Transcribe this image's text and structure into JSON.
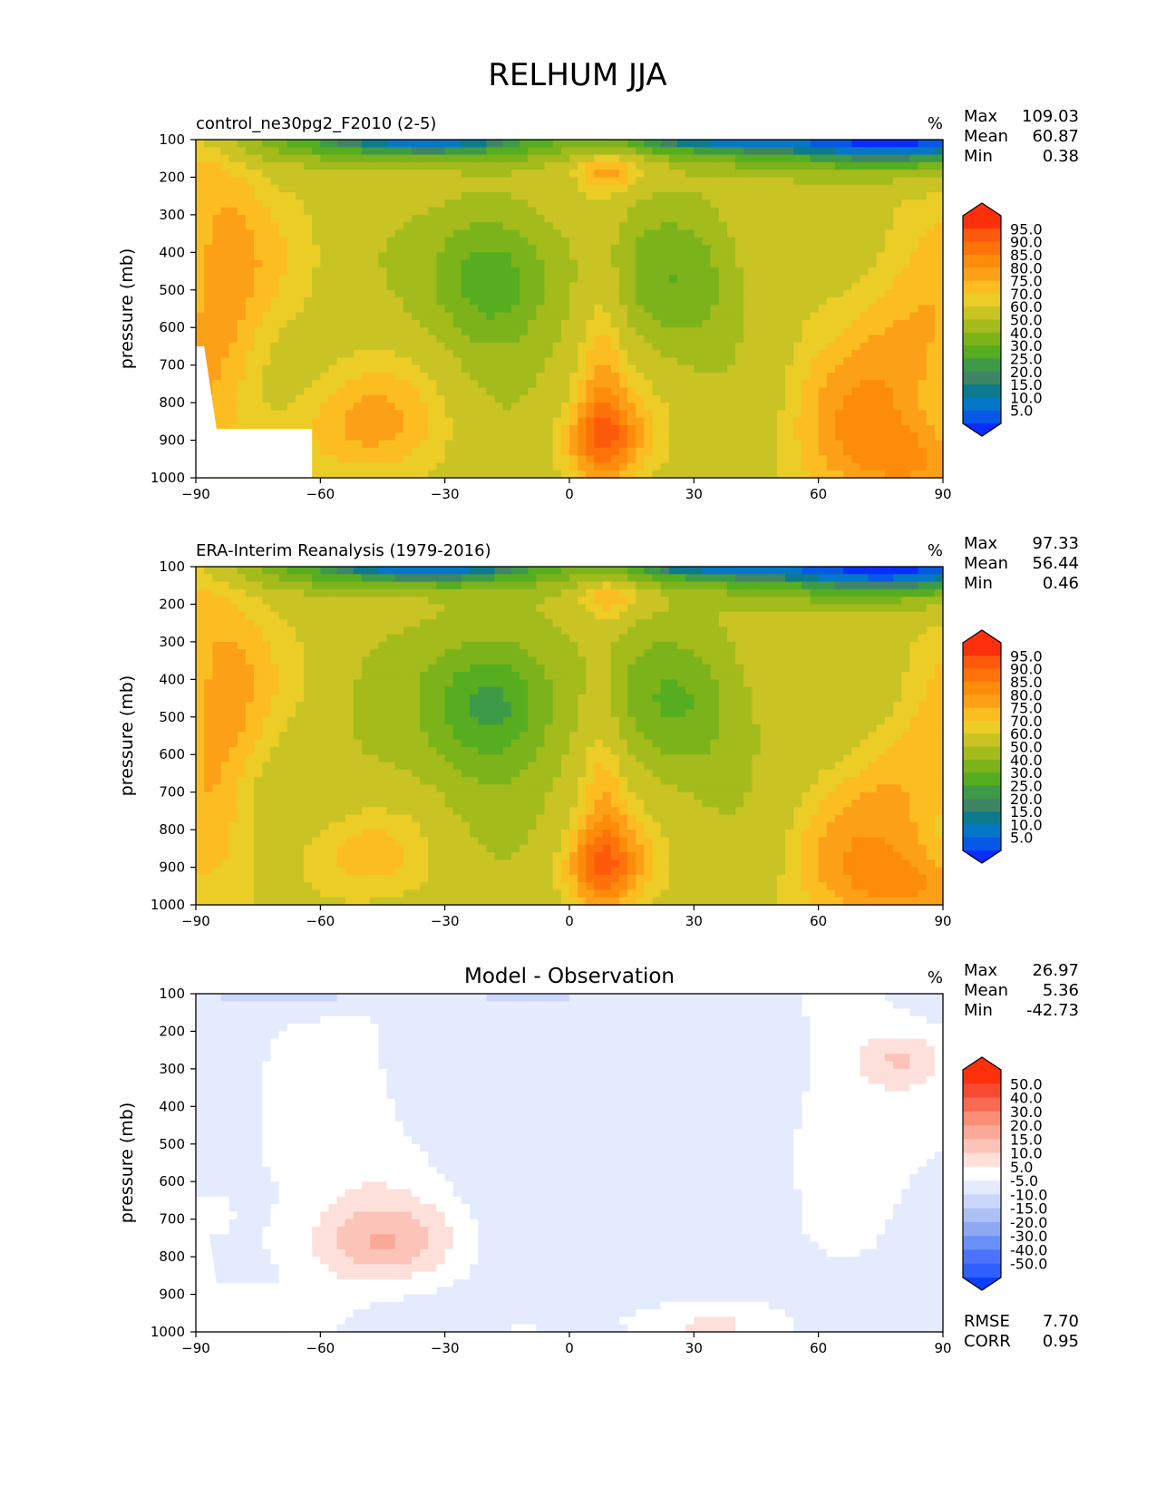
{
  "figure_title": "RELHUM JJA",
  "colors": {
    "abs": [
      "#0a2dff",
      "#0658e6",
      "#0577c8",
      "#0b7b8d",
      "#3e8565",
      "#3d9a47",
      "#55ad1f",
      "#7cb31a",
      "#a3bb1b",
      "#c9c324",
      "#ebcd26",
      "#fcbd21",
      "#fca017",
      "#fd8c0b",
      "#fd730a",
      "#fe5a0c",
      "#fe300c"
    ],
    "diff": [
      "#0a3fff",
      "#2f5fff",
      "#4b74fb",
      "#6a8ff6",
      "#8ea8f4",
      "#adc0f5",
      "#cbd7fa",
      "#e3ebfd",
      "#ffffff",
      "#fde0da",
      "#fcc3b8",
      "#fca897",
      "#fc8d76",
      "#f96a53",
      "#f64a30",
      "#fe300c"
    ]
  },
  "chart_data": [
    {
      "type": "heatmap",
      "title": "control_ne30pg2_F2010 (2-5)",
      "units": "%",
      "ylabel": "pressure (mb)",
      "x_ticks": [
        "−90",
        "−60",
        "−30",
        "0",
        "30",
        "60",
        "90"
      ],
      "y_ticks": [
        "100",
        "200",
        "300",
        "400",
        "500",
        "600",
        "700",
        "800",
        "900",
        "1000"
      ],
      "xlim": [
        -90,
        90
      ],
      "ylim": [
        1000,
        100
      ],
      "stats": [
        {
          "label": "Max",
          "value": "109.03"
        },
        {
          "label": "Mean",
          "value": "60.87"
        },
        {
          "label": "Min",
          "value": "0.38"
        }
      ],
      "colorbar_labels": [
        "95.0",
        "90.0",
        "85.0",
        "80.0",
        "75.0",
        "70.0",
        "60.0",
        "50.0",
        "40.0",
        "30.0",
        "25.0",
        "20.0",
        "15.0",
        "10.0",
        "5.0"
      ]
    },
    {
      "type": "heatmap",
      "title": "ERA-Interim Reanalysis (1979-2016)",
      "units": "%",
      "ylabel": "pressure (mb)",
      "x_ticks": [
        "−90",
        "−60",
        "−30",
        "0",
        "30",
        "60",
        "90"
      ],
      "y_ticks": [
        "100",
        "200",
        "300",
        "400",
        "500",
        "600",
        "700",
        "800",
        "900",
        "1000"
      ],
      "xlim": [
        -90,
        90
      ],
      "ylim": [
        1000,
        100
      ],
      "stats": [
        {
          "label": "Max",
          "value": "97.33"
        },
        {
          "label": "Mean",
          "value": "56.44"
        },
        {
          "label": "Min",
          "value": "0.46"
        }
      ],
      "colorbar_labels": [
        "95.0",
        "90.0",
        "85.0",
        "80.0",
        "75.0",
        "70.0",
        "60.0",
        "50.0",
        "40.0",
        "30.0",
        "25.0",
        "20.0",
        "15.0",
        "10.0",
        "5.0"
      ]
    },
    {
      "type": "heatmap",
      "title": "Model - Observation",
      "units": "%",
      "ylabel": "pressure (mb)",
      "x_ticks": [
        "−90",
        "−60",
        "−30",
        "0",
        "30",
        "60",
        "90"
      ],
      "y_ticks": [
        "100",
        "200",
        "300",
        "400",
        "500",
        "600",
        "700",
        "800",
        "900",
        "1000"
      ],
      "xlim": [
        -90,
        90
      ],
      "ylim": [
        1000,
        100
      ],
      "stats": [
        {
          "label": "Max",
          "value": "26.97"
        },
        {
          "label": "Mean",
          "value": "5.36"
        },
        {
          "label": "Min",
          "value": "-42.73"
        }
      ],
      "colorbar_labels": [
        "50.0",
        "40.0",
        "30.0",
        "20.0",
        "15.0",
        "10.0",
        "5.0",
        "-5.0",
        "-10.0",
        "-15.0",
        "-20.0",
        "-30.0",
        "-40.0",
        "-50.0"
      ],
      "extra_stats": [
        {
          "label": "RMSE",
          "value": "7.70"
        },
        {
          "label": "CORR",
          "value": "0.95"
        }
      ]
    }
  ]
}
